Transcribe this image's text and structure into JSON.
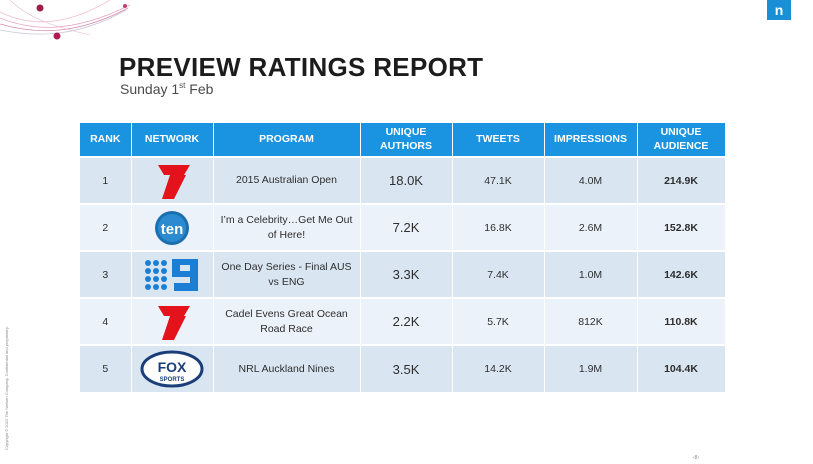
{
  "header": {
    "title": "PREVIEW RATINGS REPORT",
    "subtitle_main": "Sunday 1",
    "subtitle_sup": "st",
    "subtitle_end": " Feb",
    "brand_logo": "n",
    "copyright": "Copyright © 2022 The Nielsen Company. Confidential and proprietary.",
    "page_number": "‹8›"
  },
  "table": {
    "columns": [
      "RANK",
      "NETWORK",
      "PROGRAM",
      "UNIQUE AUTHORS",
      "TWEETS",
      "IMPRESSIONS",
      "UNIQUE AUDIENCE"
    ],
    "rows": [
      {
        "rank": "1",
        "network": "channel-seven-logo",
        "program": "2015 Australian Open",
        "authors": "18.0K",
        "tweets": "47.1K",
        "impressions": "4.0M",
        "audience": "214.9K"
      },
      {
        "rank": "2",
        "network": "network-ten-logo",
        "program": "I’m a Celebrity…Get Me Out of Here!",
        "authors": "7.2K",
        "tweets": "16.8K",
        "impressions": "2.6M",
        "audience": "152.8K"
      },
      {
        "rank": "3",
        "network": "channel-nine-logo",
        "program": "One Day Series - Final AUS vs ENG",
        "authors": "3.3K",
        "tweets": "7.4K",
        "impressions": "1.0M",
        "audience": "142.6K"
      },
      {
        "rank": "4",
        "network": "channel-seven-logo",
        "program": "Cadel Evens Great Ocean Road Race",
        "authors": "2.2K",
        "tweets": "5.7K",
        "impressions": "812K",
        "audience": "110.8K"
      },
      {
        "rank": "5",
        "network": "fox-sports-logo",
        "program": "NRL Auckland Nines",
        "authors": "3.5K",
        "tweets": "14.2K",
        "impressions": "1.9M",
        "audience": "104.4K"
      }
    ],
    "logo_text": {
      "ten": "ten",
      "fox": "FOX",
      "sports": "SPORTS"
    }
  },
  "colors": {
    "header_blue": "#1a94e0",
    "row_dark": "#d9e6f2",
    "row_light": "#ecf2f9",
    "seven_red": "#e3121b",
    "ten_blue": "#1a6fb0",
    "nine_blue": "#1c7fd6",
    "fox_navy": "#1b3e78"
  }
}
